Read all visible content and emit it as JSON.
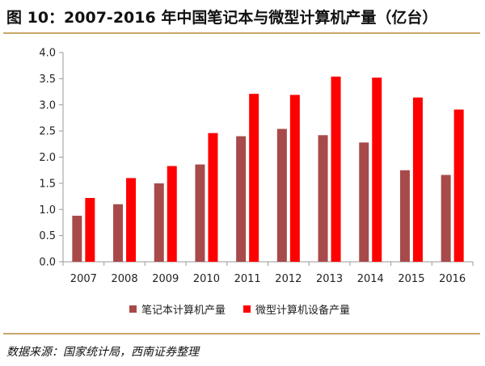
{
  "header": {
    "title": "图 10：2007-2016 年中国笔记本与微型计算机产量（亿台）"
  },
  "footer": {
    "source": "数据来源：国家统计局，西南证券整理"
  },
  "colors": {
    "series1": "#a84a4a",
    "series2": "#ff0000",
    "axis": "#999999",
    "rule": "#c8a86a"
  },
  "chart_data": {
    "type": "bar",
    "categories": [
      "2007",
      "2008",
      "2009",
      "2010",
      "2011",
      "2012",
      "2013",
      "2014",
      "2015",
      "2016"
    ],
    "series": [
      {
        "name": "笔记本计算机产量",
        "values": [
          0.88,
          1.1,
          1.5,
          1.86,
          2.4,
          2.54,
          2.42,
          2.28,
          1.75,
          1.66
        ]
      },
      {
        "name": "微型计算机设备产量",
        "values": [
          1.22,
          1.6,
          1.83,
          2.46,
          3.21,
          3.19,
          3.54,
          3.52,
          3.14,
          2.91
        ]
      }
    ],
    "yticks": [
      "0.0",
      "0.5",
      "1.0",
      "1.5",
      "2.0",
      "2.5",
      "3.0",
      "3.5",
      "4.0"
    ],
    "ylim": [
      0,
      4.0
    ],
    "grid": false,
    "legend_position": "bottom"
  }
}
